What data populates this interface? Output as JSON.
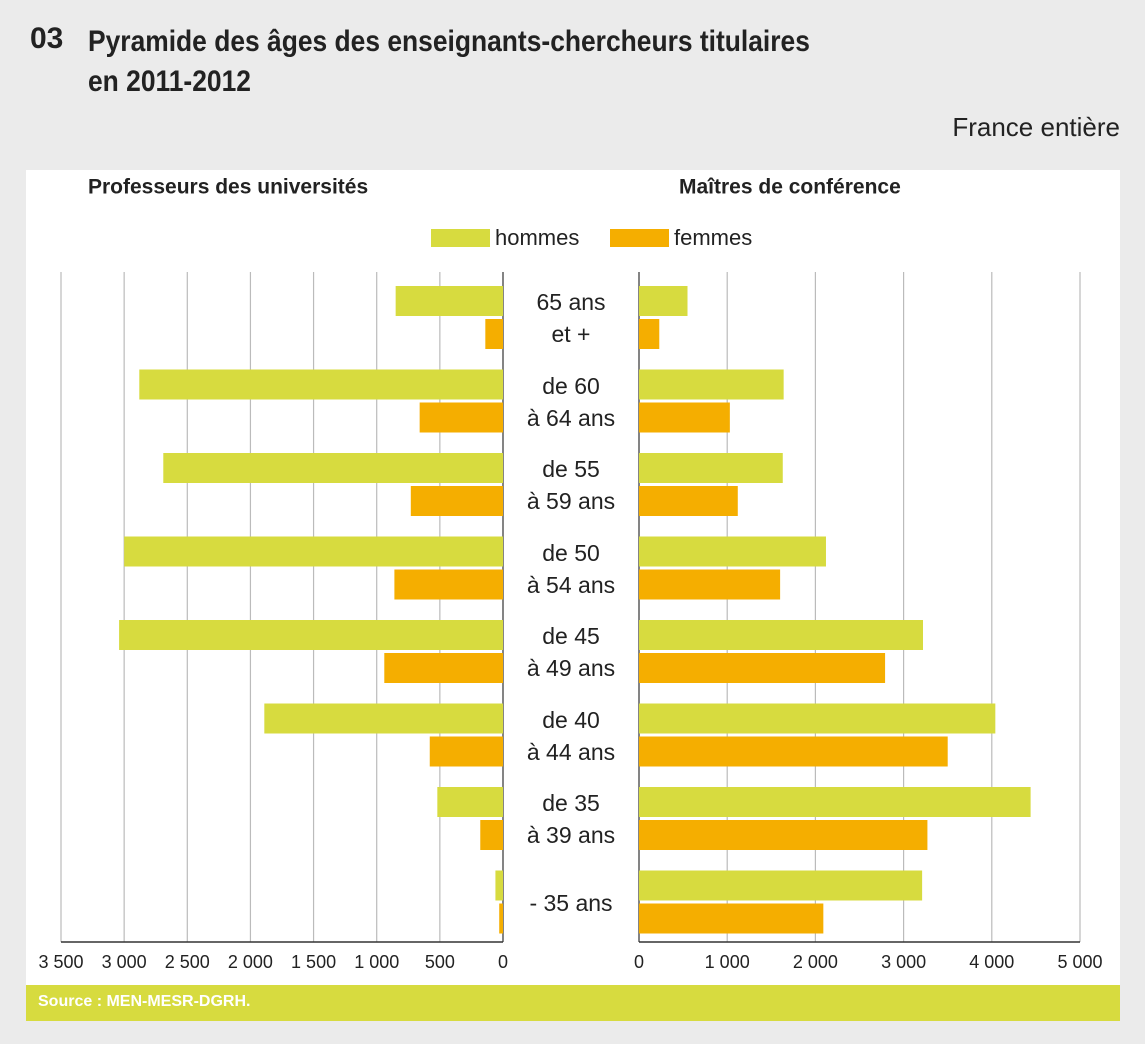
{
  "number": "03",
  "title": "Pyramide des âges des enseignants-chercheurs titulaires\nen 2011-2012",
  "subtitle": "France entière",
  "source": "Source : MEN-MESR-DGRH.",
  "chart_data": [
    {
      "type": "bar",
      "title": "Professeurs des universités",
      "categories": [
        "65 ans\net +",
        "de 60\nà 64 ans",
        "de 55\nà 59 ans",
        "de 50\nà 54 ans",
        "de 45\nà 49 ans",
        "de 40\nà 44 ans",
        "de 35\nà 39 ans",
        "- 35 ans"
      ],
      "series": [
        {
          "name": "hommes",
          "color": "#d7db3f",
          "values": [
            850,
            2880,
            2690,
            3000,
            3040,
            1890,
            520,
            60
          ]
        },
        {
          "name": "femmes",
          "color": "#f5ae00",
          "values": [
            140,
            660,
            730,
            860,
            940,
            580,
            180,
            30
          ]
        }
      ],
      "xlim": [
        3500,
        0
      ],
      "xticks": [
        {
          "value": 3500,
          "label": "3 500"
        },
        {
          "value": 3000,
          "label": "3 000"
        },
        {
          "value": 2500,
          "label": "2 500"
        },
        {
          "value": 2000,
          "label": "2 000"
        },
        {
          "value": 1500,
          "label": "1 500"
        },
        {
          "value": 1000,
          "label": "1 000"
        },
        500,
        0
      ],
      "grid": true
    },
    {
      "type": "bar",
      "title": "Maîtres de conférence",
      "series": [
        {
          "name": "hommes",
          "color": "#d7db3f",
          "values": [
            550,
            1640,
            1630,
            2120,
            3220,
            4040,
            4440,
            3210
          ]
        },
        {
          "name": "femmes",
          "color": "#f5ae00",
          "values": [
            230,
            1030,
            1120,
            1600,
            2790,
            3500,
            3270,
            2090
          ]
        }
      ],
      "xlim": [
        0,
        5000
      ],
      "xticks": [
        0,
        {
          "value": 1000,
          "label": "1 000"
        },
        {
          "value": 2000,
          "label": "2 000"
        },
        {
          "value": 3000,
          "label": "3 000"
        },
        {
          "value": 4000,
          "label": "4 000"
        },
        {
          "value": 5000,
          "label": "5 000"
        }
      ],
      "grid": true
    }
  ]
}
